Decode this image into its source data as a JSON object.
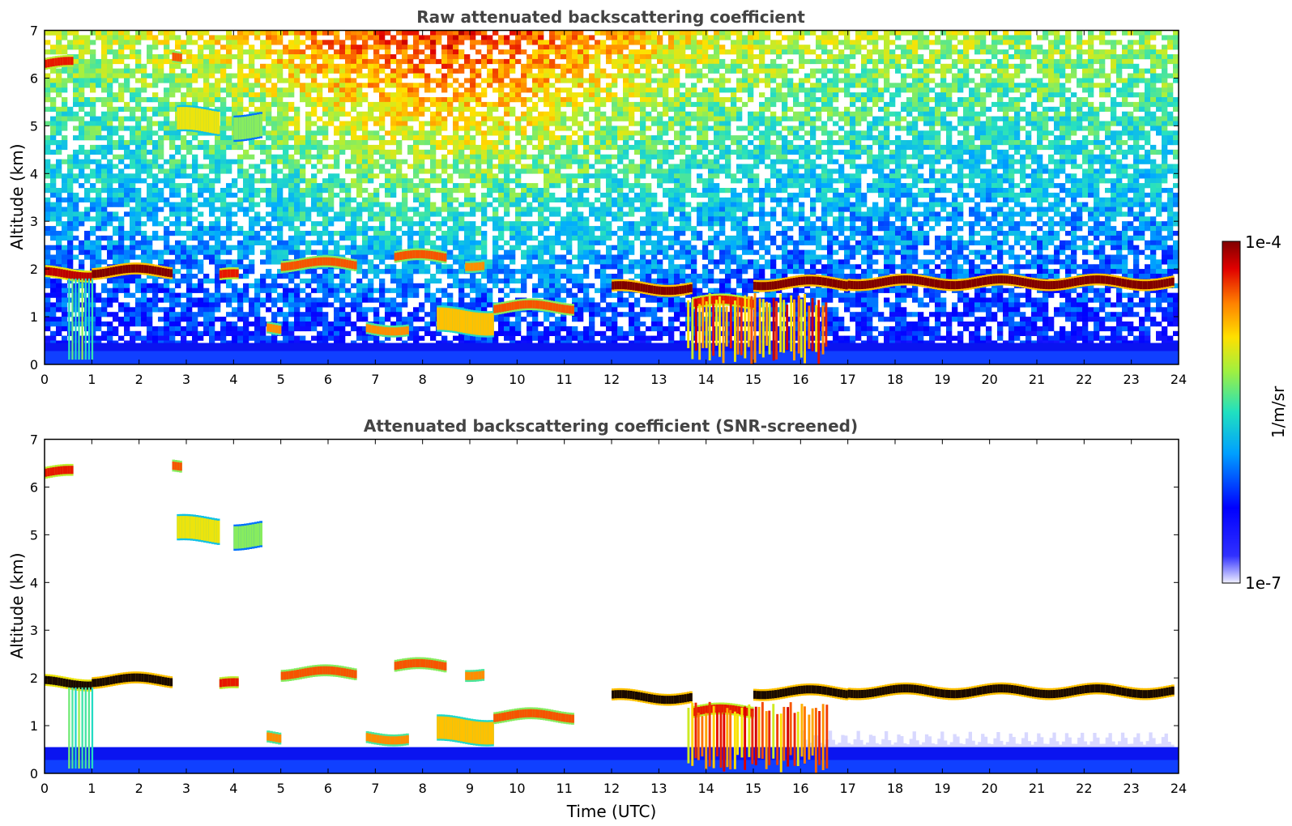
{
  "chart_data": [
    {
      "type": "heatmap",
      "title": "Raw attenuated backscattering coefficient",
      "xlabel": "",
      "ylabel": "Altitude (km)",
      "xlim": [
        0,
        24
      ],
      "ylim": [
        0,
        7
      ],
      "x_ticks": [
        "0",
        "1",
        "2",
        "3",
        "4",
        "5",
        "6",
        "7",
        "8",
        "9",
        "10",
        "11",
        "12",
        "13",
        "14",
        "15",
        "16",
        "17",
        "18",
        "19",
        "20",
        "21",
        "22",
        "23",
        "24"
      ],
      "y_ticks": [
        "0",
        "1",
        "2",
        "3",
        "4",
        "5",
        "6",
        "7"
      ],
      "screened": false,
      "cloud_layers": [
        {
          "t": [
            0.0,
            0.6
          ],
          "alt_km": 6.3,
          "level": 0.9
        },
        {
          "t": [
            2.7,
            2.9
          ],
          "alt_km": 6.4,
          "level": 0.85
        },
        {
          "t": [
            2.8,
            3.7
          ],
          "alt_km": 5.1,
          "level": 0.7
        },
        {
          "t": [
            4.0,
            4.6
          ],
          "alt_km": 5.0,
          "level": 0.6
        },
        {
          "t": [
            0.0,
            1.0
          ],
          "alt_km": 1.9,
          "level": 0.95
        },
        {
          "t": [
            1.0,
            2.7
          ],
          "alt_km": 1.95,
          "level": 1.0
        },
        {
          "t": [
            3.7,
            4.1
          ],
          "alt_km": 1.85,
          "level": 0.9
        },
        {
          "t": [
            5.0,
            6.6
          ],
          "alt_km": 2.1,
          "level": 0.85
        },
        {
          "t": [
            7.4,
            8.5
          ],
          "alt_km": 2.25,
          "level": 0.85
        },
        {
          "t": [
            8.9,
            9.3
          ],
          "alt_km": 2.1,
          "level": 0.8
        },
        {
          "t": [
            6.8,
            7.7
          ],
          "alt_km": 0.75,
          "level": 0.8
        },
        {
          "t": [
            8.3,
            9.5
          ],
          "alt_km": 0.9,
          "level": 0.75
        },
        {
          "t": [
            9.5,
            11.2
          ],
          "alt_km": 1.2,
          "level": 0.85
        },
        {
          "t": [
            4.7,
            5.0
          ],
          "alt_km": 0.75,
          "level": 0.8
        },
        {
          "t": [
            12.0,
            13.7
          ],
          "alt_km": 1.6,
          "level": 1.0
        },
        {
          "t": [
            13.7,
            15.0
          ],
          "alt_km": 1.3,
          "level": 0.9
        },
        {
          "t": [
            15.0,
            17.0
          ],
          "alt_km": 1.7,
          "level": 1.0
        },
        {
          "t": [
            17.0,
            23.9
          ],
          "alt_km": 1.72,
          "level": 1.0
        }
      ],
      "colorbar": {
        "label": "1/m/sr",
        "min_label": "1e-7",
        "max_label": "1e-4"
      }
    },
    {
      "type": "heatmap",
      "title": "Attenuated backscattering coefficient (SNR-screened)",
      "xlabel": "Time (UTC)",
      "ylabel": "Altitude (km)",
      "xlim": [
        0,
        24
      ],
      "ylim": [
        0,
        7
      ],
      "x_ticks": [
        "0",
        "1",
        "2",
        "3",
        "4",
        "5",
        "6",
        "7",
        "8",
        "9",
        "10",
        "11",
        "12",
        "13",
        "14",
        "15",
        "16",
        "17",
        "18",
        "19",
        "20",
        "21",
        "22",
        "23",
        "24"
      ],
      "y_ticks": [
        "0",
        "1",
        "2",
        "3",
        "4",
        "5",
        "6",
        "7"
      ],
      "screened": true,
      "cloud_layers": [
        {
          "t": [
            0.0,
            0.6
          ],
          "alt_km": 6.3,
          "level": 0.9
        },
        {
          "t": [
            2.7,
            2.9
          ],
          "alt_km": 6.4,
          "level": 0.85
        },
        {
          "t": [
            2.8,
            3.7
          ],
          "alt_km": 5.1,
          "level": 0.7
        },
        {
          "t": [
            4.0,
            4.6
          ],
          "alt_km": 5.0,
          "level": 0.6
        },
        {
          "t": [
            0.0,
            1.0
          ],
          "alt_km": 1.9,
          "level": 0.95
        },
        {
          "t": [
            1.0,
            2.7
          ],
          "alt_km": 1.95,
          "level": 1.0
        },
        {
          "t": [
            3.7,
            4.1
          ],
          "alt_km": 1.85,
          "level": 0.9
        },
        {
          "t": [
            5.0,
            6.6
          ],
          "alt_km": 2.1,
          "level": 0.85
        },
        {
          "t": [
            7.4,
            8.5
          ],
          "alt_km": 2.25,
          "level": 0.85
        },
        {
          "t": [
            8.9,
            9.3
          ],
          "alt_km": 2.1,
          "level": 0.8
        },
        {
          "t": [
            6.8,
            7.7
          ],
          "alt_km": 0.75,
          "level": 0.8
        },
        {
          "t": [
            8.3,
            9.5
          ],
          "alt_km": 0.9,
          "level": 0.75
        },
        {
          "t": [
            9.5,
            11.2
          ],
          "alt_km": 1.2,
          "level": 0.85
        },
        {
          "t": [
            4.7,
            5.0
          ],
          "alt_km": 0.75,
          "level": 0.8
        },
        {
          "t": [
            12.0,
            13.7
          ],
          "alt_km": 1.6,
          "level": 1.0
        },
        {
          "t": [
            13.7,
            15.0
          ],
          "alt_km": 1.3,
          "level": 0.9
        },
        {
          "t": [
            15.0,
            17.0
          ],
          "alt_km": 1.7,
          "level": 1.0
        },
        {
          "t": [
            17.0,
            23.9
          ],
          "alt_km": 1.72,
          "level": 1.0
        }
      ],
      "colorbar": {
        "label": "1/m/sr",
        "min_label": "1e-7",
        "max_label": "1e-4"
      }
    }
  ],
  "colorbar": {
    "label": "1/m/sr",
    "min_label": "1e-7",
    "max_label": "1e-4",
    "colormap": [
      "#ffffff",
      "#0000ff",
      "#00b4ff",
      "#30e0a0",
      "#c8f040",
      "#ffd000",
      "#ff6000",
      "#e00000",
      "#800000"
    ]
  }
}
